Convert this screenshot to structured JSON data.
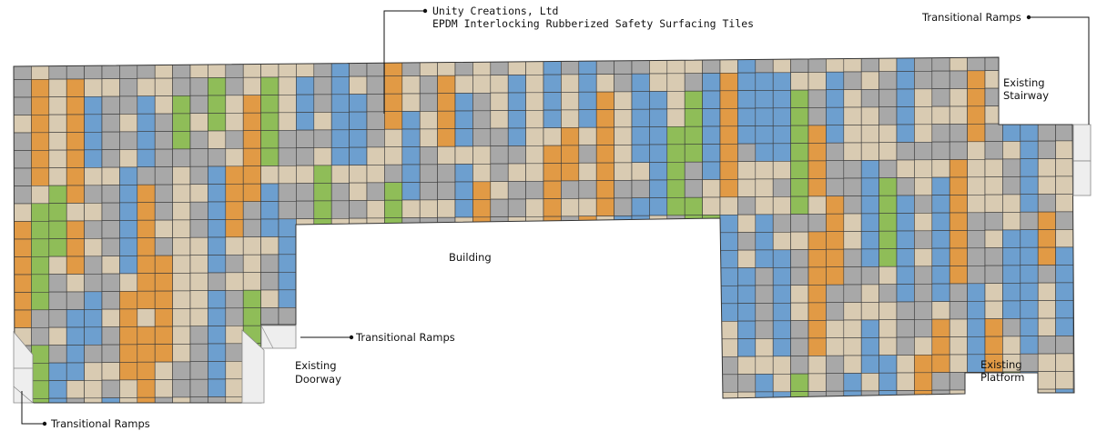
{
  "colors": {
    "tan": "#d9cbb2",
    "gray": "#a8a8a8",
    "blue": "#6d9fcf",
    "orange": "#e19a45",
    "green": "#8fbd58",
    "grout": "#3a3a3a",
    "ramp": "#eeeeee",
    "leader": "#111111"
  },
  "labels": {
    "manufacturer": "Unity Creations, Ltd",
    "product": "EPDM Interlocking Rubberized Safety Surfacing Tiles",
    "ramps_top_right": "Transitional Ramps",
    "ramps_middle": "Transitional Ramps",
    "ramps_bottom_left": "Transitional Ramps",
    "building": "Building",
    "doorway_line1": "Existing",
    "doorway_line2": "Doorway",
    "stairway_line1": "Existing",
    "stairway_line2": "Stairway",
    "platform_line1": "Existing",
    "platform_line2": "Platform"
  }
}
